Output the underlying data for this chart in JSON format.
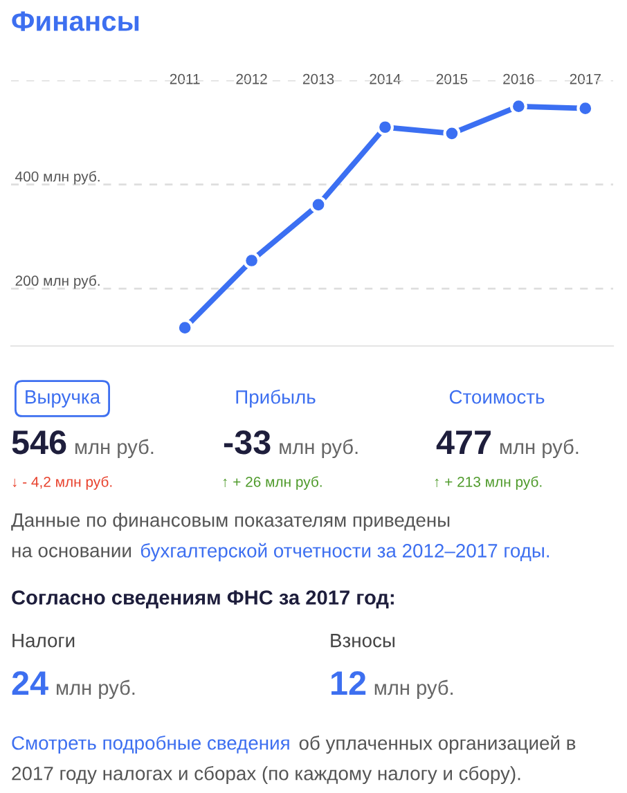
{
  "chart_data": {
    "type": "line",
    "title": "Финансы",
    "categories": [
      "2011",
      "2012",
      "2013",
      "2014",
      "2015",
      "2016",
      "2017"
    ],
    "series": [
      {
        "color": "#3b6ff2",
        "values": [
          125,
          254,
          361,
          510,
          498,
          550,
          546
        ]
      }
    ],
    "ylim": [
      90,
      600
    ],
    "yticks": [
      {
        "value": 200,
        "label": "200 млн руб."
      },
      {
        "value": 400,
        "label": "400 млн руб."
      },
      {
        "value": 600,
        "label": null
      }
    ],
    "grid": "y",
    "marker": "circle",
    "line_style": "solid",
    "annotations": [
      "Выручка",
      "Прибыль",
      "Стоимость",
      "546",
      "млн руб.",
      "-33",
      "млн руб.",
      "477",
      "млн руб.",
      "↓ - 4,2 млн руб.",
      "↑ + 26 млн руб.",
      "↑ + 213 млн руб.",
      "Данные по финансовым показателям приведены",
      "на основании",
      "бухгалтерской отчетности за 2012–2017 годы.",
      "Согласно сведениям ФНС за 2017 год:",
      "Налоги",
      "Взносы",
      "24",
      "млн руб.",
      "12",
      "млн руб.",
      "Смотреть подробные сведения",
      "об уплаченных организацией в",
      "2017 году налогах и сборах (по каждому налогу и сбору)."
    ]
  }
}
